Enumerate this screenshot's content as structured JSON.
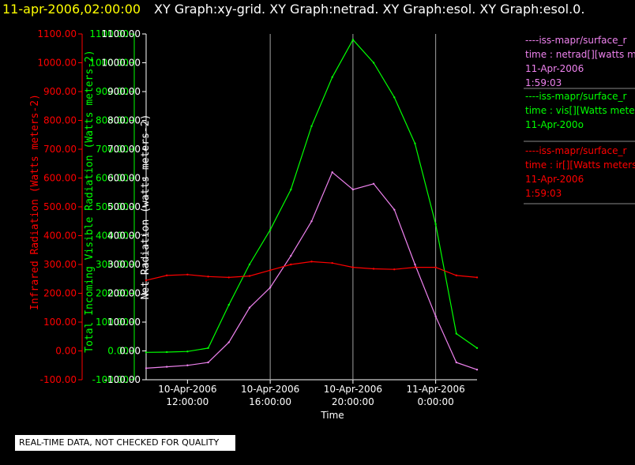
{
  "header": {
    "timestamp": "11-apr-2006,02:00:00",
    "graph_list": "XY Graph:xy-grid.  XY Graph:netrad.  XY Graph:esol.  XY Graph:esol.0."
  },
  "colors": {
    "timestamp": "#ffff00",
    "ir": "#ff0000",
    "vis": "#00ff00",
    "net": "#ee82ee",
    "grid": "#a0a0a0",
    "text": "#ffffff"
  },
  "legend": [
    {
      "line1": "----iss-mapr/surface_r",
      "line2": "time : netrad[][watts me",
      "line3": "11-Apr-2006",
      "line4": "1:59:03",
      "color": "#ee82ee"
    },
    {
      "line1": "----iss-mapr/surface_r",
      "line2": "time : vis[][Watts meter",
      "line3": "11-Apr-200o",
      "line4": "",
      "color": "#00ff00"
    },
    {
      "line1": "----iss-mapr/surface_r",
      "line2": "time : ir[][Watts meters",
      "line3": "11-Apr-2006",
      "line4": "1:59:03",
      "color": "#ff0000"
    }
  ],
  "disclaimer": "REAL-TIME DATA, NOT CHECKED FOR QUALITY",
  "chart_data": {
    "type": "line",
    "xlabel": "Time",
    "x_ticks": [
      {
        "value": "2006-04-10 12:00",
        "date": "10-Apr-2006",
        "time": "12:00:00"
      },
      {
        "value": "2006-04-10 16:00",
        "date": "10-Apr-2006",
        "time": "16:00:00"
      },
      {
        "value": "2006-04-10 20:00",
        "date": "10-Apr-2006",
        "time": "20:00:00"
      },
      {
        "value": "2006-04-11 00:00",
        "date": "11-Apr-2006",
        "time": "0:00:00"
      }
    ],
    "xlim": [
      "2006-04-10 10:00",
      "2006-04-11 02:00"
    ],
    "vertical_gridlines": [
      "2006-04-10 16:00",
      "2006-04-10 20:00",
      "2006-04-11 00:00"
    ],
    "y_axes": [
      {
        "id": "ir",
        "label": "Infrared Radiation (Watts meters-2)",
        "color": "#ff0000"
      },
      {
        "id": "vis",
        "label": "Total Incoming Visible Radiation (Watts meters-2)",
        "color": "#00ff00"
      },
      {
        "id": "net",
        "label": "Net Radiation (watts meters-2)",
        "color": "#ffffff"
      }
    ],
    "ylim": [
      -100,
      1100
    ],
    "y_ticks": [
      "-100.00",
      "0.00",
      "100.00",
      "200.00",
      "300.00",
      "400.00",
      "500.00",
      "600.00",
      "700.00",
      "800.00",
      "900.00",
      "1000.00",
      "1100.00"
    ],
    "series": [
      {
        "id": "ir",
        "color": "#ff0000",
        "x": [
          "2006-04-10 10:00",
          "2006-04-10 11:00",
          "2006-04-10 12:00",
          "2006-04-10 13:00",
          "2006-04-10 14:00",
          "2006-04-10 15:00",
          "2006-04-10 16:00",
          "2006-04-10 17:00",
          "2006-04-10 18:00",
          "2006-04-10 19:00",
          "2006-04-10 20:00",
          "2006-04-10 21:00",
          "2006-04-10 22:00",
          "2006-04-10 23:00",
          "2006-04-11 00:00",
          "2006-04-11 01:00",
          "2006-04-11 02:00"
        ],
        "values": [
          245,
          262,
          265,
          258,
          255,
          260,
          280,
          300,
          310,
          305,
          290,
          285,
          283,
          290,
          290,
          262,
          255
        ]
      },
      {
        "id": "vis",
        "color": "#00ff00",
        "x": [
          "2006-04-10 10:00",
          "2006-04-10 11:00",
          "2006-04-10 12:00",
          "2006-04-10 13:00",
          "2006-04-10 14:00",
          "2006-04-10 15:00",
          "2006-04-10 16:00",
          "2006-04-10 17:00",
          "2006-04-10 18:00",
          "2006-04-10 19:00",
          "2006-04-10 20:00",
          "2006-04-10 21:00",
          "2006-04-10 22:00",
          "2006-04-10 23:00",
          "2006-04-11 00:00",
          "2006-04-11 01:00",
          "2006-04-11 02:00"
        ],
        "values": [
          -5,
          -4,
          -2,
          10,
          160,
          300,
          420,
          560,
          780,
          950,
          1080,
          1000,
          880,
          720,
          440,
          60,
          10
        ]
      },
      {
        "id": "net",
        "color": "#ee82ee",
        "x": [
          "2006-04-10 10:00",
          "2006-04-10 11:00",
          "2006-04-10 12:00",
          "2006-04-10 13:00",
          "2006-04-10 14:00",
          "2006-04-10 15:00",
          "2006-04-10 16:00",
          "2006-04-10 17:00",
          "2006-04-10 18:00",
          "2006-04-10 19:00",
          "2006-04-10 20:00",
          "2006-04-10 21:00",
          "2006-04-10 22:00",
          "2006-04-10 23:00",
          "2006-04-11 00:00",
          "2006-04-11 01:00",
          "2006-04-11 02:00"
        ],
        "values": [
          -60,
          -55,
          -50,
          -40,
          30,
          150,
          220,
          330,
          450,
          620,
          560,
          580,
          490,
          300,
          120,
          -40,
          -65
        ]
      }
    ]
  }
}
